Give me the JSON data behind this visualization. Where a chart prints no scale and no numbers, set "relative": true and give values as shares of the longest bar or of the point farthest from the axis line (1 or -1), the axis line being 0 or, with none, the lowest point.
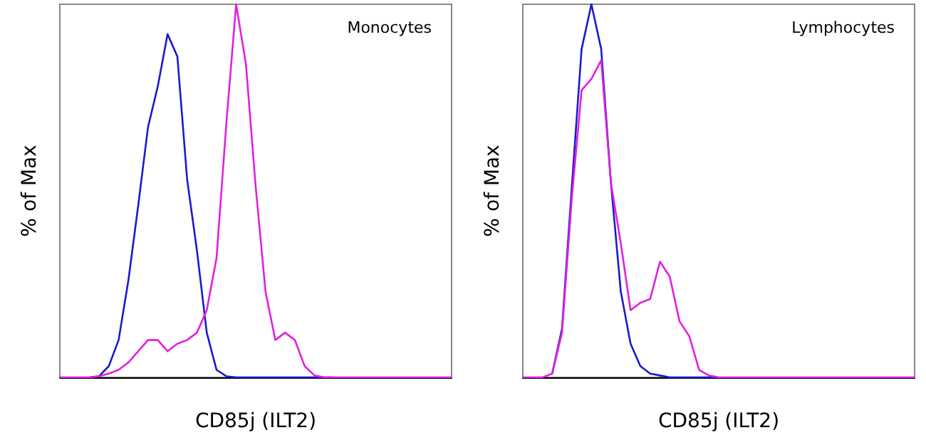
{
  "chart_data": [
    {
      "type": "line",
      "relative": true,
      "xlabel": "CD85j (ILT2)",
      "ylabel": "% of Max",
      "annotations": [
        "Monocytes"
      ],
      "marker": "none",
      "categories": [
        null,
        null,
        null,
        null,
        null,
        null,
        null,
        null,
        null,
        null,
        null,
        null,
        null,
        null,
        null,
        null,
        null,
        null,
        null,
        null,
        null,
        null,
        null,
        null,
        null,
        null,
        null,
        null,
        null,
        null,
        null,
        null,
        null,
        null,
        null,
        null,
        null,
        null,
        null,
        null,
        null
      ],
      "series": [
        {
          "color": "#1a1acc",
          "values": [
            null,
            null,
            null,
            0,
            0.003,
            0.03,
            0.1,
            0.26,
            0.46,
            0.67,
            0.78,
            0.92,
            0.86,
            0.53,
            0.34,
            0.12,
            0.02,
            0.003,
            0,
            0,
            0,
            0,
            0,
            0,
            0,
            0,
            0,
            0,
            0,
            null,
            null,
            null,
            null,
            null,
            null,
            null,
            null,
            null,
            null,
            null,
            null
          ]
        },
        {
          "color": "#e020e0",
          "values": [
            0,
            0,
            0,
            0,
            0.003,
            0.01,
            0.02,
            0.04,
            0.07,
            0.1,
            0.1,
            0.07,
            0.09,
            0.1,
            0.12,
            0.18,
            0.32,
            0.68,
            1,
            0.84,
            0.51,
            0.23,
            0.1,
            0.12,
            0.1,
            0.03,
            0.005,
            0,
            0,
            0,
            0,
            0,
            0,
            0,
            0,
            0,
            0,
            0,
            0,
            0,
            0
          ]
        }
      ]
    },
    {
      "type": "line",
      "relative": true,
      "xlabel": "CD85j (ILT2)",
      "ylabel": "% of Max",
      "annotations": [
        "Lymphocytes"
      ],
      "marker": "none",
      "categories": [
        null,
        null,
        null,
        null,
        null,
        null,
        null,
        null,
        null,
        null,
        null,
        null,
        null,
        null,
        null,
        null,
        null,
        null,
        null,
        null,
        null,
        null,
        null,
        null,
        null,
        null,
        null,
        null,
        null,
        null,
        null,
        null,
        null,
        null,
        null,
        null,
        null,
        null,
        null,
        null,
        null
      ],
      "series": [
        {
          "color": "#1a1acc",
          "values": [
            null,
            null,
            null,
            0.01,
            0.13,
            0.51,
            0.88,
            1,
            0.88,
            0.52,
            0.23,
            0.09,
            0.03,
            0.01,
            0.005,
            0,
            0,
            0,
            0,
            0,
            0,
            null,
            null,
            null,
            null,
            null,
            null,
            null,
            null,
            null,
            null,
            null,
            null,
            null,
            null,
            null,
            null,
            null,
            null,
            null,
            null
          ]
        },
        {
          "color": "#e020e0",
          "values": [
            0,
            0,
            0,
            0.01,
            0.12,
            0.48,
            0.77,
            0.8,
            0.85,
            0.52,
            0.36,
            0.18,
            0.2,
            0.21,
            0.31,
            0.27,
            0.15,
            0.11,
            0.02,
            0.005,
            0,
            0,
            0,
            0,
            0,
            0,
            0,
            0,
            0,
            0,
            0,
            0,
            0,
            0,
            0,
            0,
            0,
            0,
            0,
            0,
            0
          ]
        }
      ]
    }
  ]
}
